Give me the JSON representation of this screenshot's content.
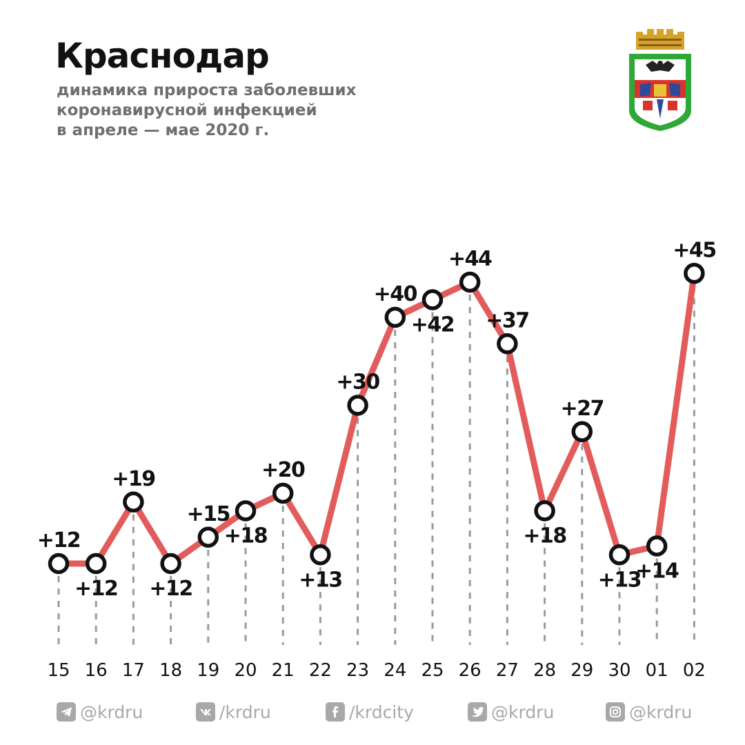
{
  "header": {
    "title": "Краснодар",
    "subtitle_lines": [
      "динамика прироста заболевших",
      "коронавирусной инфекцией",
      "в апреле — мае 2020 г."
    ]
  },
  "emblem": {
    "icon": "city-coat-of-arms-icon"
  },
  "chart_data": {
    "type": "line",
    "title": "",
    "xlabel": "",
    "ylabel": "",
    "categories": [
      "15",
      "16",
      "17",
      "18",
      "19",
      "20",
      "21",
      "22",
      "23",
      "24",
      "25",
      "26",
      "27",
      "28",
      "29",
      "30",
      "01",
      "02"
    ],
    "values": [
      12,
      12,
      19,
      12,
      15,
      18,
      20,
      13,
      30,
      40,
      42,
      44,
      37,
      18,
      27,
      13,
      14,
      45
    ],
    "data_labels": [
      "+12",
      "+12",
      "+19",
      "+12",
      "+15",
      "+18",
      "+20",
      "+13",
      "+30",
      "+40",
      "+42",
      "+44",
      "+37",
      "+18",
      "+27",
      "+13",
      "+14",
      "+45"
    ],
    "label_positions": [
      "above",
      "below",
      "above",
      "below",
      "above",
      "below",
      "above",
      "below",
      "above",
      "above",
      "below",
      "above",
      "above",
      "below",
      "above",
      "below",
      "below",
      "above"
    ],
    "grid": false,
    "legend": "none",
    "colors": {
      "line": "#e25c5c",
      "marker_stroke": "#111111",
      "marker_fill": "#ffffff",
      "guides": "#9a9a9a"
    }
  },
  "social": [
    {
      "icon": "telegram-icon",
      "label": "@krdru"
    },
    {
      "icon": "vk-icon",
      "label": "/krdru"
    },
    {
      "icon": "facebook-icon",
      "label": "/krdcity"
    },
    {
      "icon": "twitter-icon",
      "label": "@krdru"
    },
    {
      "icon": "instagram-icon",
      "label": "@krdru"
    }
  ]
}
